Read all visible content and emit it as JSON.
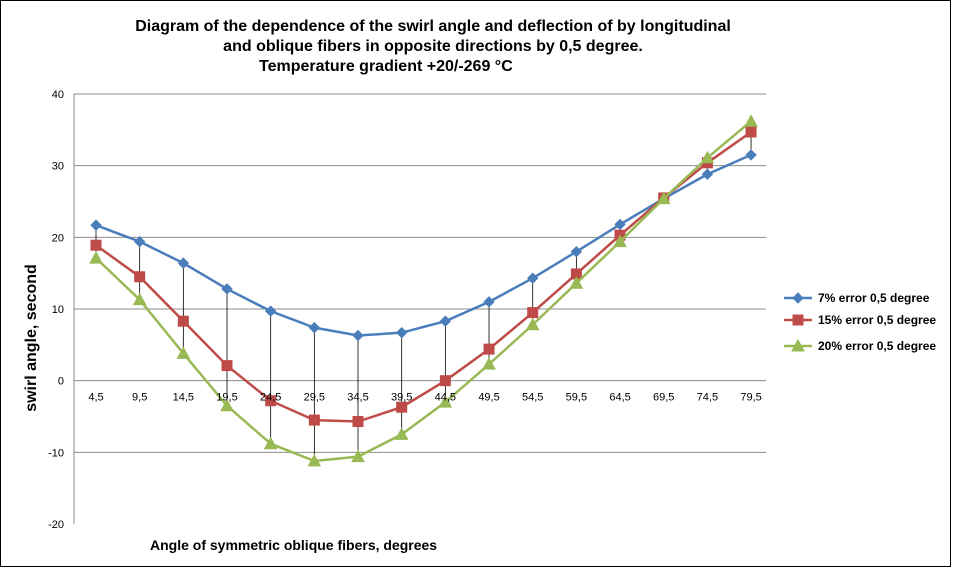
{
  "chart_data": {
    "type": "line",
    "title_lines": [
      "Diagram of the dependence of the swirl angle and deflection of by longitudinal",
      "and oblique fibers in opposite directions by 0,5 degree.",
      "Temperature gradient +20/-269 °C"
    ],
    "xlabel": "Angle of symmetric oblique fibers, degrees",
    "ylabel": "swirl angle, second",
    "categories": [
      "4,5",
      "9,5",
      "14,5",
      "19,5",
      "24,5",
      "29,5",
      "34,5",
      "39,5",
      "44,5",
      "49,5",
      "54,5",
      "59,5",
      "64,5",
      "69,5",
      "74,5",
      "79,5"
    ],
    "ylim": [
      -20,
      40
    ],
    "yticks": [
      "-20",
      "-10",
      "0",
      "10",
      "20",
      "30",
      "40"
    ],
    "grid": "horizontal",
    "legend_position": "right",
    "series": [
      {
        "name": "7% error 0,5 degree",
        "color": "#4a7ebb",
        "marker": "diamond",
        "values": [
          21.7,
          19.4,
          16.4,
          12.8,
          9.7,
          7.4,
          6.3,
          6.7,
          8.3,
          11.0,
          14.3,
          18.0,
          21.8,
          25.4,
          28.8,
          31.5
        ]
      },
      {
        "name": "15% error 0,5 degree",
        "color": "#be4b48",
        "marker": "square",
        "values": [
          18.9,
          14.5,
          8.3,
          2.1,
          -2.8,
          -5.5,
          -5.7,
          -3.7,
          0.0,
          4.4,
          9.5,
          14.9,
          20.3,
          25.5,
          30.4,
          34.7
        ]
      },
      {
        "name": "20% error 0,5 degree",
        "color": "#98b954",
        "marker": "triangle",
        "values": [
          17.1,
          11.3,
          3.8,
          -3.5,
          -8.8,
          -11.2,
          -10.6,
          -7.5,
          -3.0,
          2.3,
          7.8,
          13.6,
          19.4,
          25.4,
          31.1,
          36.2
        ]
      }
    ]
  }
}
